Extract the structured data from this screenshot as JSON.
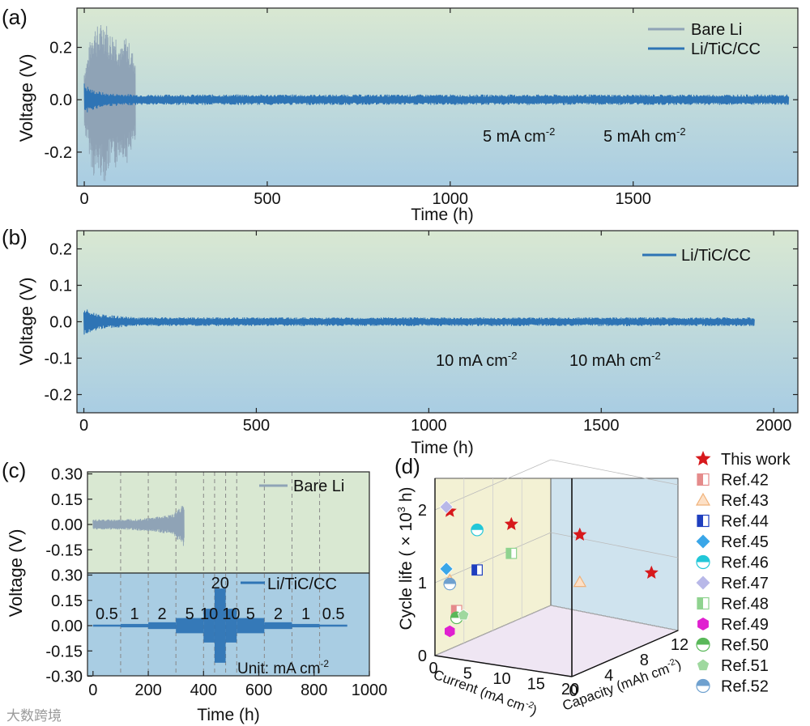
{
  "colors": {
    "bare_li": "#8fa3b6",
    "li_tic_cc": "#2e74b5",
    "star": "#d7191c",
    "bg_top": "#d9e8d2",
    "bg_bottom": "#a9cde3",
    "panel_d_left_wall": "#f3f1d4",
    "panel_d_right_wall": "#cfe3ee",
    "panel_d_floor": "#efe6f3"
  },
  "chart_data": [
    {
      "panel": "(a)",
      "type": "line",
      "xlabel": "Time (h)",
      "ylabel": "Voltage (V)",
      "xlim": [
        -20,
        1950
      ],
      "ylim": [
        -0.33,
        0.35
      ],
      "xticks": [
        0,
        500,
        1000,
        1500
      ],
      "yticks": [
        -0.2,
        0.0,
        0.2
      ],
      "ytick_labels": [
        "-0.2",
        "0.0",
        "0.2"
      ],
      "annotations": [
        "5 mA cm",
        "5 mAh cm"
      ],
      "legend": [
        "Bare Li",
        "Li/TiC/CC"
      ],
      "legend_position": "top-right",
      "series": [
        {
          "name": "Bare Li",
          "duration_h": 140,
          "envelope": {
            "x": [
              0,
              10,
              25,
              40,
              55,
              70,
              85,
              100,
              115,
              130,
              140
            ],
            "amp": [
              0.12,
              0.18,
              0.3,
              0.28,
              0.32,
              0.26,
              0.27,
              0.2,
              0.25,
              0.19,
              0.17
            ]
          }
        },
        {
          "name": "Li/TiC/CC",
          "duration_h": 1925,
          "envelope": {
            "x": [
              0,
              20,
              60,
              150,
              1925
            ],
            "amp": [
              0.065,
              0.04,
              0.025,
              0.02,
              0.02
            ]
          }
        }
      ]
    },
    {
      "panel": "(b)",
      "type": "line",
      "xlabel": "Time (h)",
      "ylabel": "Voltage (V)",
      "xlim": [
        -20,
        2070
      ],
      "ylim": [
        -0.25,
        0.25
      ],
      "xticks": [
        0,
        500,
        1000,
        1500,
        2000
      ],
      "yticks": [
        -0.2,
        -0.1,
        0.0,
        0.1,
        0.2
      ],
      "ytick_labels": [
        "-0.2",
        "-0.1",
        "0.0",
        "0.1",
        "0.2"
      ],
      "annotations": [
        "10 mA cm",
        "10 mAh cm"
      ],
      "legend": [
        "Li/TiC/CC"
      ],
      "legend_position": "top-right",
      "series": [
        {
          "name": "Li/TiC/CC",
          "duration_h": 1945,
          "envelope": {
            "x": [
              0,
              15,
              50,
              150,
              1945
            ],
            "amp": [
              0.04,
              0.03,
              0.02,
              0.012,
              0.012
            ]
          }
        }
      ]
    },
    {
      "panel": "(c)",
      "type": "line",
      "xlabel": "Time (h)",
      "ylabel": "Voltage (V)",
      "xlim": [
        -20,
        1000
      ],
      "ylim": [
        -0.3,
        0.3
      ],
      "xticks": [
        0,
        200,
        400,
        600,
        800,
        1000
      ],
      "yticks": [
        -0.3,
        -0.15,
        0.0,
        0.15,
        0.3
      ],
      "ytick_labels": [
        "-0.30",
        "-0.15",
        "0.00",
        "0.15",
        "0.30"
      ],
      "current_steps": [
        {
          "label": "0.5",
          "from": 0,
          "to": 100
        },
        {
          "label": "1",
          "from": 100,
          "to": 200
        },
        {
          "label": "2",
          "from": 200,
          "to": 300
        },
        {
          "label": "5",
          "from": 300,
          "to": 400
        },
        {
          "label": "10",
          "from": 400,
          "to": 440
        },
        {
          "label": "20",
          "from": 440,
          "to": 480
        },
        {
          "label": "10",
          "from": 480,
          "to": 520
        },
        {
          "label": "5",
          "from": 520,
          "to": 620
        },
        {
          "label": "2",
          "from": 620,
          "to": 720
        },
        {
          "label": "1",
          "from": 720,
          "to": 820
        },
        {
          "label": "0.5",
          "from": 820,
          "to": 920
        }
      ],
      "step_dividers_h": [
        100,
        200,
        300,
        400,
        440,
        480,
        520,
        620,
        720,
        820
      ],
      "unit_label": "Unit: mA cm",
      "legend": [
        "Bare Li",
        "Li/TiC/CC"
      ],
      "series": [
        {
          "name": "Bare Li",
          "duration_h": 330,
          "envelope": {
            "x": [
              0,
              100,
              200,
              290,
              305,
              320,
              330
            ],
            "amp": [
              0.03,
              0.03,
              0.04,
              0.06,
              0.09,
              0.12,
              0.14
            ]
          }
        },
        {
          "name": "Li/TiC/CC",
          "segments": [
            {
              "from": 0,
              "to": 100,
              "amp": 0.006
            },
            {
              "from": 100,
              "to": 200,
              "amp": 0.01
            },
            {
              "from": 200,
              "to": 300,
              "amp": 0.02
            },
            {
              "from": 300,
              "to": 400,
              "amp": 0.045
            },
            {
              "from": 400,
              "to": 440,
              "amp": 0.1
            },
            {
              "from": 440,
              "to": 480,
              "amp": 0.22
            },
            {
              "from": 480,
              "to": 520,
              "amp": 0.1
            },
            {
              "from": 520,
              "to": 620,
              "amp": 0.045
            },
            {
              "from": 620,
              "to": 720,
              "amp": 0.02
            },
            {
              "from": 720,
              "to": 820,
              "amp": 0.01
            },
            {
              "from": 820,
              "to": 920,
              "amp": 0.006
            }
          ]
        }
      ]
    },
    {
      "panel": "(d)",
      "type": "scatter",
      "xlabel": "Current (mA cm",
      "ylabel": "Cycle life ( × 10³ h)",
      "zlabel": "Capacity (mAh cm",
      "xticks": [
        0,
        5,
        10,
        15,
        20
      ],
      "ytick_labels": [
        "0",
        "1",
        "2"
      ],
      "zticks": [
        0,
        4,
        8,
        12
      ],
      "legend": [
        "This work",
        "Ref.42",
        "Ref.43",
        "Ref.44",
        "Ref.45",
        "Ref.46",
        "Ref.47",
        "Ref.48",
        "Ref.49",
        "Ref.50",
        "Ref.51",
        "Ref.52"
      ],
      "points": [
        {
          "label": "This work",
          "current": 1,
          "capacity": 1,
          "cycle_life": 1.95
        },
        {
          "label": "This work",
          "current": 10,
          "capacity": 1,
          "cycle_life": 1.9
        },
        {
          "label": "This work",
          "current": 20,
          "capacity": 1,
          "cycle_life": 1.9
        },
        {
          "label": "This work",
          "current": 20,
          "capacity": 10,
          "cycle_life": 0.95
        },
        {
          "label": "Ref.42",
          "current": 2,
          "capacity": 1,
          "cycle_life": 0.6
        },
        {
          "label": "Ref.43",
          "current": 20,
          "capacity": 1,
          "cycle_life": 1.25
        },
        {
          "label": "Ref.43",
          "current": 1,
          "capacity": 1,
          "cycle_life": 1.0
        },
        {
          "label": "Ref.44",
          "current": 5,
          "capacity": 1,
          "cycle_life": 1.2
        },
        {
          "label": "Ref.45",
          "current": 0.5,
          "capacity": 1,
          "cycle_life": 1.15
        },
        {
          "label": "Ref.46",
          "current": 5,
          "capacity": 1,
          "cycle_life": 1.75
        },
        {
          "label": "Ref.47",
          "current": 0.5,
          "capacity": 1,
          "cycle_life": 2.0
        },
        {
          "label": "Ref.48",
          "current": 10,
          "capacity": 1,
          "cycle_life": 1.5
        },
        {
          "label": "Ref.49",
          "current": 1,
          "capacity": 1,
          "cycle_life": 0.3
        },
        {
          "label": "Ref.50",
          "current": 2,
          "capacity": 1,
          "cycle_life": 0.5
        },
        {
          "label": "Ref.51",
          "current": 3,
          "capacity": 1,
          "cycle_life": 0.55
        },
        {
          "label": "Ref.52",
          "current": 1,
          "capacity": 1,
          "cycle_life": 0.95
        }
      ]
    }
  ],
  "watermark": "大数跨境"
}
